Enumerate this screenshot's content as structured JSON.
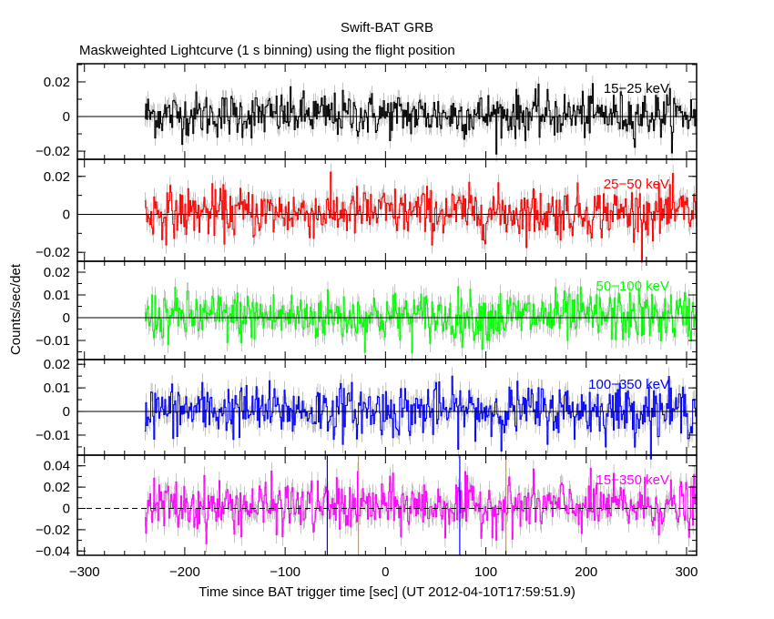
{
  "chart_data": {
    "type": "line",
    "title": "Swift-BAT GRB",
    "subtitle": "Maskweighted Lightcurve (1 s binning) using the flight position",
    "xlabel": "Time since BAT trigger time [sec] (UT 2012-04-10T17:59:51.9)",
    "ylabel": "Counts/sec/det",
    "xlim": [
      -307,
      310
    ],
    "x_ticks": [
      -300,
      -200,
      -100,
      0,
      100,
      200,
      300
    ],
    "x_tick_labels": [
      "−300",
      "−200",
      "−100",
      "0",
      "100",
      "200",
      "300"
    ],
    "binning_sec": 1,
    "data_time_range": [
      -240,
      310
    ],
    "markers": [
      {
        "x": -58,
        "color": "#0000ff"
      },
      {
        "x": -27,
        "color": "#ff8c00"
      },
      {
        "x": 74,
        "color": "#0000ff"
      },
      {
        "x": 120,
        "color": "#ff8c00"
      }
    ],
    "series": [
      {
        "name": "15−25 keV",
        "color": "#000000",
        "ylim": [
          -0.0247,
          0.0305
        ],
        "yticks": [
          -0.02,
          0,
          0.02
        ],
        "ytick_labels": [
          "−0.02",
          "0",
          "0.02"
        ],
        "mean": 0.001,
        "sigma": 0.0065
      },
      {
        "name": "25−50 keV",
        "color": "#ff0000",
        "ylim": [
          -0.0247,
          0.029
        ],
        "yticks": [
          -0.02,
          0,
          0.02
        ],
        "ytick_labels": [
          "−0.02",
          "0",
          "0.02"
        ],
        "mean": 0.001,
        "sigma": 0.0065
      },
      {
        "name": "50−100 keV",
        "color": "#00ff00",
        "ylim": [
          -0.0184,
          0.0248
        ],
        "yticks": [
          -0.01,
          0,
          0.01,
          0.02
        ],
        "ytick_labels": [
          "−0.01",
          "0",
          "0.01",
          "0.02"
        ],
        "mean": 0.0005,
        "sigma": 0.0055
      },
      {
        "name": "100−350 keV",
        "color": "#0000ff",
        "ylim": [
          -0.0185,
          0.022
        ],
        "yticks": [
          -0.01,
          0,
          0.01,
          0.02
        ],
        "ytick_labels": [
          "−0.01",
          "0",
          "0.01",
          "0.02"
        ],
        "mean": 0.0005,
        "sigma": 0.0055
      },
      {
        "name": "15−350 keV",
        "color": "#ff00ff",
        "ylim": [
          -0.044,
          0.05
        ],
        "yticks": [
          -0.04,
          -0.02,
          0,
          0.02,
          0.04
        ],
        "ytick_labels": [
          "−0.04",
          "−0.02",
          "0",
          "0.02",
          "0.04"
        ],
        "mean": 0.002,
        "sigma": 0.012
      }
    ]
  }
}
